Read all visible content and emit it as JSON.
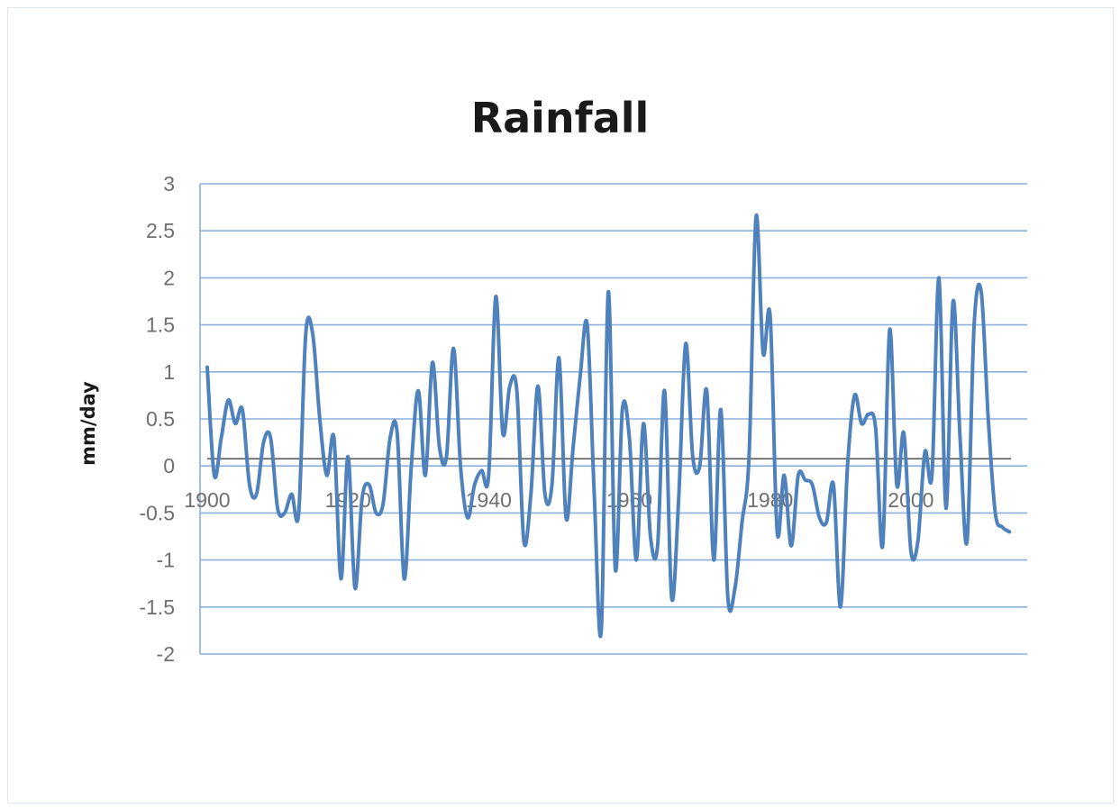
{
  "chart_data": {
    "type": "line",
    "title": "Rainfall",
    "xlabel": "",
    "ylabel": "mm/day",
    "ylim": [
      -2,
      3
    ],
    "xlim": [
      1900,
      2015
    ],
    "y_ticks": [
      "3",
      "2.5",
      "2",
      "1.5",
      "1",
      "0.5",
      "0",
      "-0.5",
      "-1",
      "-1.5",
      "-2"
    ],
    "x_ticks": [
      "1900",
      "1920",
      "1940",
      "1960",
      "1980",
      "2000"
    ],
    "grid": "horizontal",
    "colors": {
      "line": "#4f81bd",
      "grid": "#8cb0dc",
      "zero_line": "#404040"
    },
    "series": [
      {
        "x": [
          1900,
          1901,
          1902,
          1903,
          1904,
          1905,
          1906,
          1907,
          1908,
          1909,
          1910,
          1911,
          1912,
          1913,
          1914,
          1915,
          1916,
          1917,
          1918,
          1919,
          1920,
          1921,
          1922,
          1923,
          1924,
          1925,
          1926,
          1927,
          1928,
          1929,
          1930,
          1931,
          1932,
          1933,
          1934,
          1935,
          1936,
          1937,
          1938,
          1939,
          1940,
          1941,
          1942,
          1943,
          1944,
          1945,
          1946,
          1947,
          1948,
          1949,
          1950,
          1951,
          1952,
          1953,
          1954,
          1955,
          1956,
          1957,
          1958,
          1959,
          1960,
          1961,
          1962,
          1963,
          1964,
          1965,
          1966,
          1967,
          1968,
          1969,
          1970,
          1971,
          1972,
          1973,
          1974,
          1975,
          1976,
          1977,
          1978,
          1979,
          1980,
          1981,
          1982,
          1983,
          1984,
          1985,
          1986,
          1987,
          1988,
          1989,
          1990,
          1991,
          1992,
          1993,
          1994,
          1995,
          1996,
          1997,
          1998,
          1999,
          2000,
          2001,
          2002,
          2003,
          2004,
          2005,
          2006,
          2007,
          2008,
          2009,
          2010,
          2011,
          2012,
          2013,
          2014
        ],
        "values": [
          1.05,
          -0.1,
          0.3,
          0.7,
          0.45,
          0.6,
          -0.2,
          -0.3,
          0.25,
          0.3,
          -0.45,
          -0.5,
          -0.3,
          -0.5,
          1.4,
          1.4,
          0.5,
          -0.1,
          0.3,
          -1.2,
          0.1,
          -1.3,
          -0.35,
          -0.2,
          -0.5,
          -0.4,
          0.3,
          0.35,
          -1.2,
          0.0,
          0.8,
          -0.1,
          1.1,
          0.2,
          0.1,
          1.25,
          0.0,
          -0.55,
          -0.2,
          -0.05,
          -0.1,
          1.8,
          0.35,
          0.85,
          0.8,
          -0.8,
          -0.3,
          0.85,
          -0.3,
          -0.2,
          1.15,
          -0.55,
          0.2,
          0.95,
          1.5,
          -0.3,
          -1.75,
          1.85,
          -1.1,
          0.6,
          0.3,
          -1.0,
          0.45,
          -0.75,
          -0.85,
          0.8,
          -1.4,
          -0.35,
          1.3,
          0.1,
          0.0,
          0.8,
          -1.0,
          0.6,
          -1.4,
          -1.3,
          -0.6,
          0.1,
          2.65,
          1.2,
          1.6,
          -0.7,
          -0.1,
          -0.85,
          -0.1,
          -0.15,
          -0.2,
          -0.55,
          -0.6,
          -0.2,
          -1.5,
          0.0,
          0.75,
          0.45,
          0.55,
          0.4,
          -0.85,
          1.45,
          -0.2,
          0.35,
          -0.9,
          -0.8,
          0.15,
          -0.1,
          2.0,
          -0.45,
          1.75,
          0.3,
          -0.8,
          1.5,
          1.85,
          0.5,
          -0.5,
          -0.65,
          -0.7
        ]
      }
    ]
  }
}
